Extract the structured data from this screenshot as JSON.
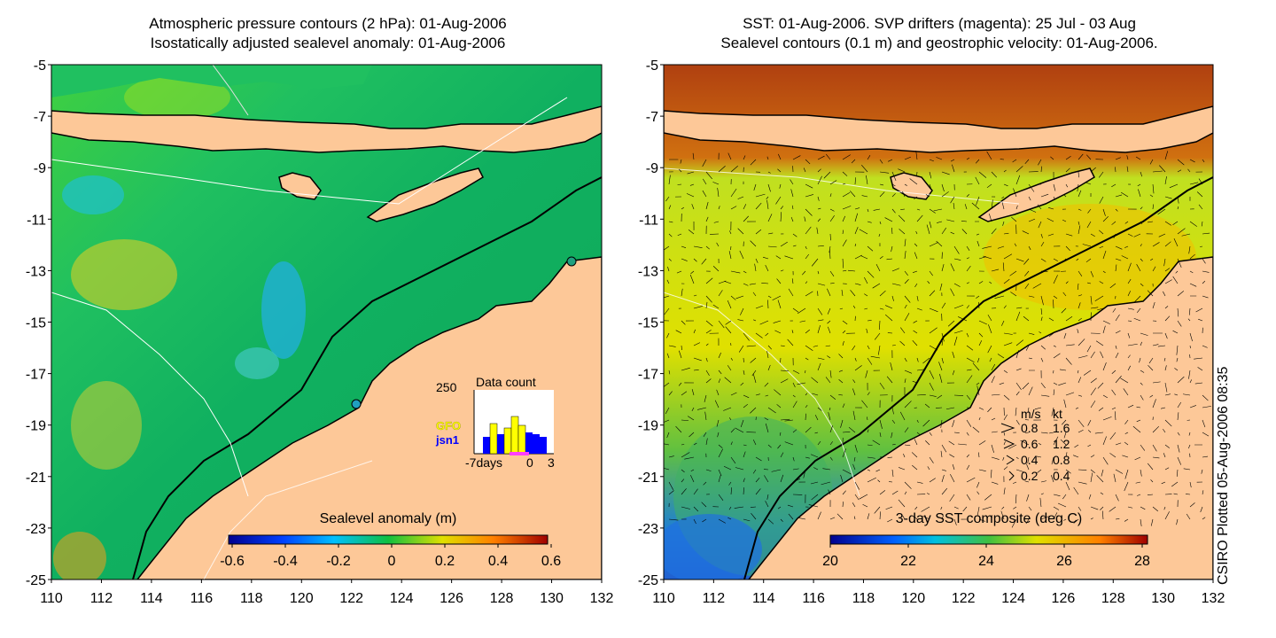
{
  "left_panel": {
    "title_line1": "Atmospheric pressure contours (2 hPa): 01-Aug-2006",
    "title_line2": "Isostatically adjusted sealevel anomaly: 01-Aug-2006",
    "colorbar": {
      "label": "Sealevel anomaly (m)",
      "ticks": [
        "-0.6",
        "-0.4",
        "-0.2",
        "0",
        "0.2",
        "0.4",
        "0.6"
      ],
      "range": [
        -0.6,
        0.6
      ]
    },
    "data_count_inset": {
      "label": "Data count",
      "y_max": "250",
      "sources": [
        {
          "name": "GFO",
          "color": "#ffff00"
        },
        {
          "name": "jsn1",
          "color": "#0000ff"
        }
      ],
      "x_tick_left": "-7days",
      "x_tick_mid": "0",
      "x_tick_right": "3"
    }
  },
  "right_panel": {
    "title_line1": "SST: 01-Aug-2006. SVP drifters (magenta): 25 Jul - 03 Aug",
    "title_line2": "Sealevel contours (0.1 m) and geostrophic velocity: 01-Aug-2006.",
    "colorbar": {
      "label": "3-day SST composite (deg C)",
      "ticks": [
        "20",
        "22",
        "24",
        "26",
        "28"
      ],
      "range": [
        20,
        28
      ]
    },
    "velocity_legend": {
      "header_ms": "m/s",
      "header_kt": "kt",
      "rows": [
        {
          "ms": "0.8",
          "kt": "1.6"
        },
        {
          "ms": "0.6",
          "kt": "1.2"
        },
        {
          "ms": "0.4",
          "kt": "0.8"
        },
        {
          "ms": "0.2",
          "kt": "0.4"
        }
      ]
    }
  },
  "axes": {
    "lat_ticks": [
      "-5",
      "-7",
      "-9",
      "-11",
      "-13",
      "-15",
      "-17",
      "-19",
      "-21",
      "-23",
      "-25"
    ],
    "lon_ticks": [
      "110",
      "112",
      "114",
      "116",
      "118",
      "120",
      "122",
      "124",
      "126",
      "128",
      "130",
      "132"
    ],
    "lat_range": [
      -25,
      -5
    ],
    "lon_range": [
      110,
      132
    ]
  },
  "footer": {
    "credit": "CSIRO Plotted 05-Aug-2006 08:35"
  },
  "colors": {
    "land": "#fdc898",
    "sea_left": "#10b050",
    "sea_right": "#e0e000"
  }
}
